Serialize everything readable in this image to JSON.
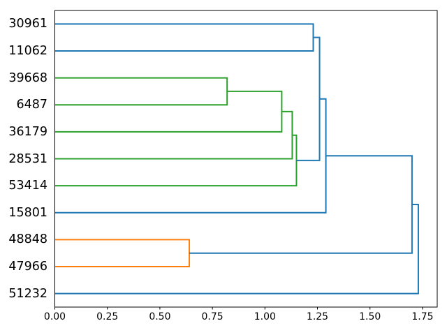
{
  "figure": {
    "background": "#ffffff",
    "axis_color": "#000000"
  },
  "chart_data": {
    "type": "dendrogram",
    "title": "",
    "xlabel": "",
    "ylabel": "",
    "orientation": "right",
    "grid": false,
    "legend": null,
    "leaf_labels": [
      "30961",
      "11062",
      "39668",
      "6487",
      "36179",
      "28531",
      "53414",
      "15801",
      "48848",
      "47966",
      "51232"
    ],
    "merges": [
      {
        "a": "L8",
        "b": "L9",
        "distance": 0.64,
        "color": "orange"
      },
      {
        "a": "L2",
        "b": "L3",
        "distance": 0.82,
        "color": "green"
      },
      {
        "a": "M1",
        "b": "L4",
        "distance": 1.08,
        "color": "green"
      },
      {
        "a": "M2",
        "b": "L5",
        "distance": 1.13,
        "color": "green"
      },
      {
        "a": "M3",
        "b": "L6",
        "distance": 1.15,
        "color": "green"
      },
      {
        "a": "L0",
        "b": "L1",
        "distance": 1.23,
        "color": "blue"
      },
      {
        "a": "M5",
        "b": "M4",
        "distance": 1.26,
        "color": "blue"
      },
      {
        "a": "M6",
        "b": "L7",
        "distance": 1.29,
        "color": "blue"
      },
      {
        "a": "M7",
        "b": "M0",
        "distance": 1.7,
        "color": "blue"
      },
      {
        "a": "M8",
        "b": "L10",
        "distance": 1.73,
        "color": "blue"
      }
    ],
    "palette": {
      "blue": "#1f77b4",
      "orange": "#ff7f0e",
      "green": "#2ca02c"
    },
    "line_width": 2,
    "xlim": [
      0,
      1.82
    ],
    "x_ticks": [
      {
        "v": 0.0,
        "label": "0.00"
      },
      {
        "v": 0.25,
        "label": "0.25"
      },
      {
        "v": 0.5,
        "label": "0.50"
      },
      {
        "v": 0.75,
        "label": "0.75"
      },
      {
        "v": 1.0,
        "label": "1.00"
      },
      {
        "v": 1.25,
        "label": "1.25"
      },
      {
        "v": 1.5,
        "label": "1.50"
      },
      {
        "v": 1.75,
        "label": "1.75"
      }
    ]
  }
}
